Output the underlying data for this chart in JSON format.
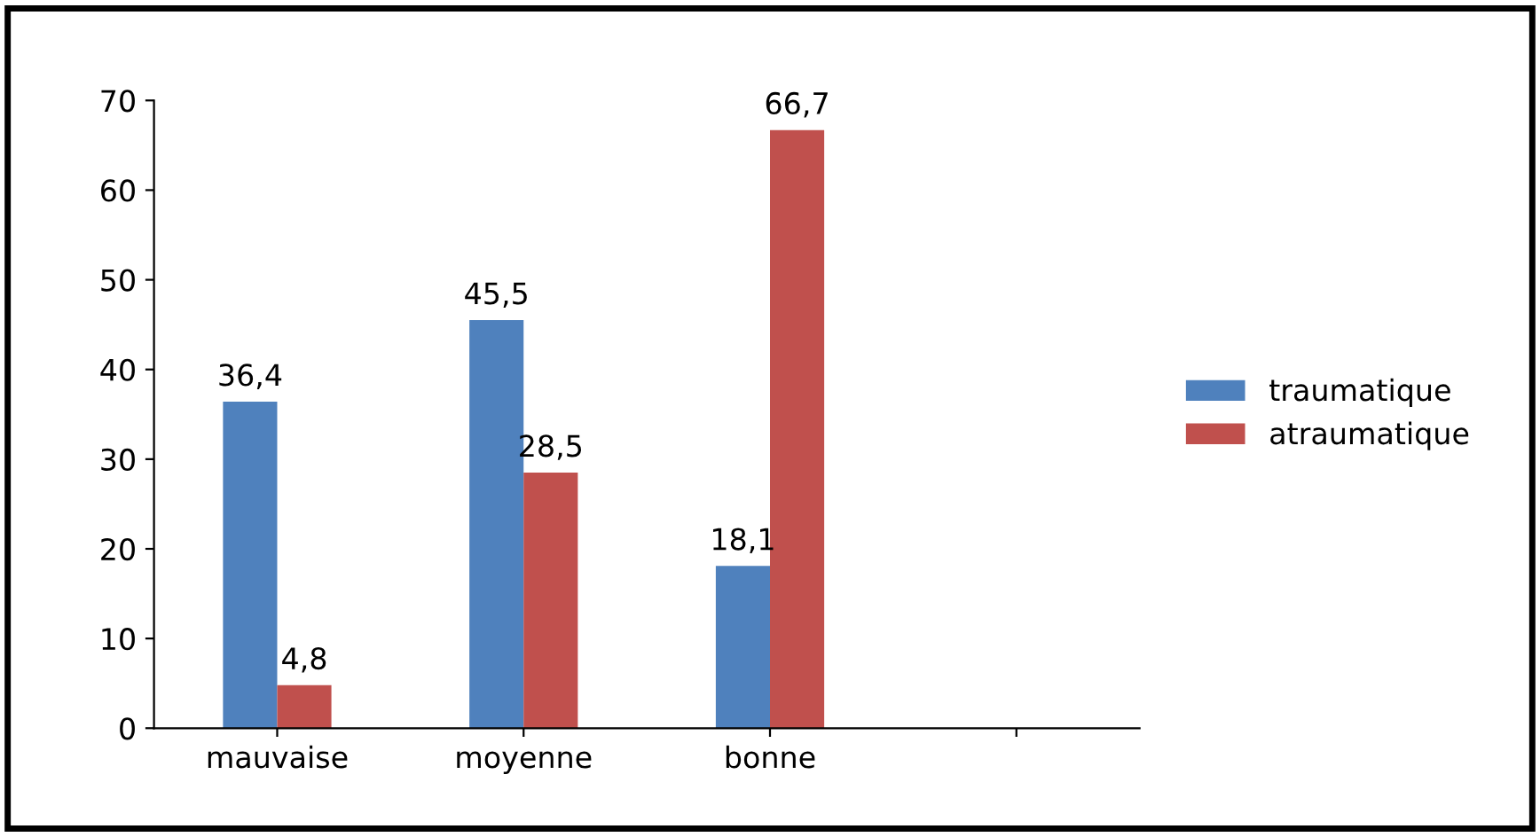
{
  "chart_data": {
    "type": "bar",
    "categories": [
      "mauvaise",
      "moyenne",
      "bonne",
      null
    ],
    "series": [
      {
        "name": "traumatique",
        "color": "#4f81bd",
        "values": [
          36.4,
          45.5,
          18.1,
          null
        ],
        "value_labels": [
          "36,4",
          "45,5",
          "18,1",
          null
        ]
      },
      {
        "name": "atraumatique",
        "color": "#c0504d",
        "values": [
          4.8,
          28.5,
          66.7,
          null
        ],
        "value_labels": [
          "4,8",
          "28,5",
          "66,7",
          null
        ]
      }
    ],
    "ylim": [
      0,
      70
    ],
    "yticks": [
      0,
      10,
      20,
      30,
      40,
      50,
      60,
      70
    ],
    "grid": false,
    "legend": "right"
  }
}
